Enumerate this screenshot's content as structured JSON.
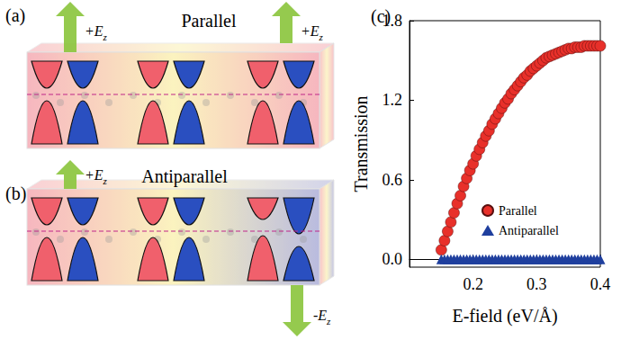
{
  "panels": {
    "a": {
      "label": "(a)",
      "title": "Parallel",
      "arrows": [
        {
          "text": "+E",
          "subscript": "z",
          "direction": "up"
        },
        {
          "text": "+E",
          "subscript": "z",
          "direction": "up"
        }
      ]
    },
    "b": {
      "label": "(b)",
      "title": "Antiparallel",
      "arrows": [
        {
          "text": "+E",
          "subscript": "z",
          "direction": "up"
        },
        {
          "text": "-E",
          "subscript": "z",
          "direction": "down"
        }
      ]
    }
  },
  "chart_data": {
    "type": "scatter",
    "annotations": [
      {
        "text": "(c)"
      }
    ],
    "x_label": "E-field (eV/Å)",
    "y_label": "Transmission",
    "x": [
      0.15,
      0.155,
      0.16,
      0.165,
      0.17,
      0.175,
      0.18,
      0.185,
      0.19,
      0.195,
      0.2,
      0.205,
      0.21,
      0.215,
      0.22,
      0.225,
      0.23,
      0.235,
      0.24,
      0.245,
      0.25,
      0.255,
      0.26,
      0.265,
      0.27,
      0.275,
      0.28,
      0.285,
      0.29,
      0.295,
      0.3,
      0.305,
      0.31,
      0.315,
      0.32,
      0.325,
      0.33,
      0.335,
      0.34,
      0.345,
      0.35,
      0.355,
      0.36,
      0.365,
      0.37,
      0.375,
      0.38,
      0.385,
      0.39,
      0.395,
      0.4
    ],
    "series": [
      {
        "name": "Parallel",
        "color": "#e8302a",
        "marker": "circle",
        "values": [
          0.07,
          0.14,
          0.21,
          0.28,
          0.35,
          0.42,
          0.48,
          0.55,
          0.61,
          0.67,
          0.72,
          0.78,
          0.83,
          0.88,
          0.93,
          0.97,
          1.02,
          1.06,
          1.1,
          1.14,
          1.18,
          1.21,
          1.25,
          1.28,
          1.31,
          1.34,
          1.37,
          1.39,
          1.42,
          1.44,
          1.46,
          1.48,
          1.5,
          1.52,
          1.53,
          1.54,
          1.55,
          1.56,
          1.57,
          1.58,
          1.59,
          1.59,
          1.6,
          1.6,
          1.6,
          1.61,
          1.61,
          1.61,
          1.61,
          1.61,
          1.61
        ]
      },
      {
        "name": "Antiparallel",
        "color": "#1f3f9e",
        "marker": "triangle",
        "values": [
          0,
          0,
          0,
          0,
          0,
          0,
          0,
          0,
          0,
          0,
          0,
          0,
          0,
          0,
          0,
          0,
          0,
          0,
          0,
          0,
          0,
          0,
          0,
          0,
          0,
          0,
          0,
          0,
          0,
          0,
          0,
          0,
          0,
          0,
          0,
          0,
          0,
          0,
          0,
          0,
          0,
          0,
          0,
          0,
          0,
          0,
          0,
          0,
          0,
          0,
          0
        ]
      }
    ],
    "xlim": [
      0.1,
      0.4
    ],
    "xticks": [
      0.2,
      0.3,
      0.4
    ],
    "ylim": [
      -0.06,
      1.8
    ],
    "yticks": [
      {
        "value": 0,
        "label": "0.0"
      },
      0.6,
      1.2,
      1.8
    ],
    "legend": "center",
    "grid": false
  }
}
